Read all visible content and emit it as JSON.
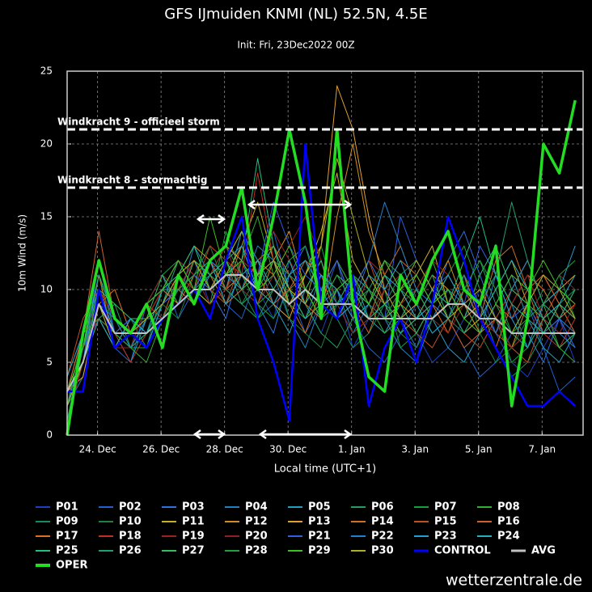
{
  "chart_data": {
    "type": "line",
    "title": "GFS IJmuiden KNMI (NL) 52.5N, 4.5E",
    "subtitle": "Init: Fri, 23Dec2022 00Z",
    "y_label": "10m Wind (m/s)",
    "x_label": "Local time (UTC+1)",
    "source": "wetterzentrale.de",
    "grid": true,
    "xlim": [
      0,
      390
    ],
    "ylim": [
      0,
      25
    ],
    "yticks": [
      0,
      5,
      10,
      15,
      20,
      25
    ],
    "xticks": [
      {
        "value": 23,
        "label": "24. Dec"
      },
      {
        "value": 71,
        "label": "26. Dec"
      },
      {
        "value": 119,
        "label": "28. Dec"
      },
      {
        "value": 167,
        "label": "30. Dec"
      },
      {
        "value": 215,
        "label": "1. Jan"
      },
      {
        "value": 263,
        "label": "3. Jan"
      },
      {
        "value": 311,
        "label": "5. Jan"
      },
      {
        "value": 359,
        "label": "7. Jan"
      }
    ],
    "hlines": [
      {
        "value": 21,
        "label": "Windkracht 9 - officieel storm"
      },
      {
        "value": 17,
        "label": "Windkracht 8 - stormachtig"
      }
    ],
    "x": [
      0,
      12,
      24,
      36,
      48,
      60,
      72,
      84,
      96,
      108,
      120,
      132,
      144,
      156,
      168,
      180,
      192,
      204,
      216,
      228,
      240,
      252,
      264,
      276,
      288,
      300,
      312,
      324,
      336,
      348,
      360,
      372,
      384
    ],
    "series": [
      {
        "name": "P01",
        "color": "#1f3fbf",
        "values": [
          2,
          6,
          9,
          7,
          6,
          8,
          9,
          10,
          12,
          9,
          11,
          13,
          10,
          8,
          12,
          9,
          7,
          10,
          6,
          8,
          11,
          9,
          7,
          5,
          6,
          8,
          10,
          7,
          5,
          4,
          6,
          8,
          5
        ]
      },
      {
        "name": "P02",
        "color": "#2060d0",
        "values": [
          3,
          7,
          8,
          6,
          5,
          9,
          11,
          8,
          10,
          12,
          9,
          8,
          11,
          14,
          10,
          7,
          9,
          12,
          8,
          6,
          5,
          7,
          9,
          11,
          8,
          6,
          4,
          5,
          7,
          9,
          6,
          3,
          4
        ]
      },
      {
        "name": "P03",
        "color": "#3070e0",
        "values": [
          1,
          5,
          11,
          8,
          7,
          6,
          9,
          12,
          11,
          10,
          8,
          12,
          9,
          7,
          11,
          13,
          10,
          8,
          9,
          12,
          10,
          8,
          6,
          9,
          12,
          14,
          11,
          8,
          6,
          7,
          5,
          8,
          10
        ]
      },
      {
        "name": "P04",
        "color": "#2080c0",
        "values": [
          2,
          4,
          9,
          6,
          8,
          7,
          10,
          9,
          13,
          11,
          12,
          10,
          9,
          11,
          8,
          6,
          9,
          10,
          7,
          9,
          8,
          6,
          5,
          8,
          10,
          9,
          7,
          11,
          9,
          6,
          8,
          7,
          6
        ]
      },
      {
        "name": "P05",
        "color": "#20a0c0",
        "values": [
          3,
          6,
          10,
          7,
          5,
          8,
          8,
          11,
          9,
          12,
          10,
          14,
          12,
          9,
          7,
          10,
          12,
          9,
          11,
          8,
          7,
          9,
          10,
          8,
          6,
          5,
          7,
          9,
          11,
          8,
          6,
          5,
          7
        ]
      },
      {
        "name": "P06",
        "color": "#20a060",
        "values": [
          2,
          5,
          8,
          9,
          6,
          7,
          9,
          10,
          11,
          13,
          12,
          9,
          8,
          10,
          12,
          9,
          7,
          6,
          8,
          10,
          12,
          11,
          9,
          7,
          8,
          10,
          12,
          9,
          7,
          6,
          8,
          9,
          7
        ]
      },
      {
        "name": "P07",
        "color": "#10a040",
        "values": [
          4,
          7,
          9,
          6,
          7,
          9,
          11,
          12,
          10,
          9,
          14,
          11,
          9,
          8,
          10,
          11,
          13,
          9,
          7,
          8,
          10,
          6,
          7,
          9,
          11,
          13,
          10,
          8,
          5,
          6,
          9,
          11,
          8
        ]
      },
      {
        "name": "P08",
        "color": "#30b030",
        "values": [
          2,
          6,
          10,
          8,
          6,
          5,
          8,
          10,
          12,
          11,
          10,
          12,
          15,
          11,
          9,
          8,
          10,
          12,
          10,
          9,
          7,
          8,
          10,
          12,
          9,
          7,
          6,
          8,
          10,
          12,
          9,
          6,
          5
        ]
      },
      {
        "name": "P09",
        "color": "#109060",
        "values": [
          3,
          5,
          9,
          7,
          8,
          6,
          10,
          11,
          9,
          12,
          11,
          10,
          8,
          9,
          11,
          12,
          9,
          8,
          6,
          7,
          9,
          11,
          12,
          10,
          8,
          7,
          9,
          6,
          4,
          5,
          7,
          9,
          10
        ]
      },
      {
        "name": "P10",
        "color": "#208040",
        "values": [
          1,
          6,
          11,
          7,
          6,
          8,
          9,
          8,
          11,
          13,
          10,
          9,
          11,
          12,
          8,
          7,
          6,
          9,
          11,
          10,
          8,
          7,
          6,
          8,
          9,
          11,
          7,
          5,
          6,
          8,
          10,
          8,
          6
        ]
      },
      {
        "name": "P11",
        "color": "#c8b020",
        "values": [
          3,
          7,
          8,
          6,
          7,
          9,
          10,
          12,
          10,
          9,
          11,
          13,
          16,
          12,
          9,
          11,
          14,
          18,
          12,
          10,
          8,
          9,
          11,
          13,
          9,
          7,
          8,
          10,
          12,
          9,
          7,
          8,
          10
        ]
      },
      {
        "name": "P12",
        "color": "#d09020",
        "values": [
          2,
          5,
          10,
          8,
          7,
          6,
          9,
          11,
          13,
          12,
          10,
          11,
          9,
          12,
          14,
          10,
          8,
          15,
          20,
          14,
          11,
          9,
          8,
          10,
          12,
          9,
          7,
          8,
          6,
          9,
          11,
          9,
          8
        ]
      },
      {
        "name": "P13",
        "color": "#e0a030",
        "values": [
          3,
          4,
          9,
          7,
          6,
          8,
          10,
          9,
          12,
          11,
          13,
          12,
          10,
          9,
          8,
          11,
          13,
          24,
          21,
          15,
          10,
          8,
          9,
          11,
          10,
          8,
          9,
          7,
          10,
          12,
          9,
          10,
          11
        ]
      },
      {
        "name": "P14",
        "color": "#d07020",
        "values": [
          2,
          6,
          11,
          6,
          8,
          7,
          9,
          10,
          9,
          12,
          11,
          10,
          12,
          11,
          9,
          7,
          10,
          12,
          9,
          8,
          11,
          13,
          10,
          8,
          9,
          11,
          8,
          12,
          13,
          10,
          7,
          9,
          8
        ]
      },
      {
        "name": "P15",
        "color": "#c05020",
        "values": [
          4,
          8,
          10,
          7,
          6,
          9,
          8,
          11,
          12,
          10,
          9,
          12,
          11,
          13,
          10,
          8,
          9,
          11,
          10,
          12,
          9,
          8,
          7,
          6,
          8,
          10,
          9,
          7,
          6,
          5,
          8,
          10,
          9
        ]
      },
      {
        "name": "P16",
        "color": "#d06030",
        "values": [
          3,
          7,
          14,
          8,
          7,
          8,
          10,
          9,
          11,
          12,
          10,
          13,
          11,
          9,
          10,
          12,
          11,
          8,
          9,
          7,
          10,
          12,
          11,
          9,
          8,
          6,
          7,
          9,
          8,
          10,
          11,
          9,
          7
        ]
      },
      {
        "name": "P17",
        "color": "#e07020",
        "values": [
          2,
          5,
          9,
          10,
          7,
          6,
          8,
          10,
          12,
          11,
          9,
          10,
          12,
          13,
          11,
          9,
          8,
          10,
          11,
          9,
          12,
          10,
          8,
          9,
          7,
          10,
          8,
          6,
          9,
          11,
          10,
          8,
          9
        ]
      },
      {
        "name": "P18",
        "color": "#c03020",
        "values": [
          3,
          6,
          8,
          7,
          5,
          7,
          9,
          11,
          10,
          13,
          12,
          11,
          18,
          12,
          10,
          9,
          11,
          10,
          8,
          11,
          9,
          7,
          8,
          10,
          9,
          7,
          6,
          8,
          10,
          9,
          7,
          6,
          8
        ]
      },
      {
        "name": "P19",
        "color": "#a02020",
        "values": [
          1,
          5,
          10,
          8,
          7,
          8,
          10,
          12,
          11,
          9,
          10,
          12,
          11,
          14,
          12,
          10,
          9,
          8,
          10,
          12,
          11,
          9,
          10,
          12,
          11,
          9,
          8,
          7,
          9,
          11,
          8,
          7,
          9
        ]
      },
      {
        "name": "P20",
        "color": "#902020",
        "values": [
          2,
          7,
          9,
          6,
          6,
          9,
          11,
          10,
          12,
          11,
          13,
          10,
          9,
          11,
          13,
          15,
          12,
          9,
          7,
          8,
          10,
          11,
          9,
          8,
          7,
          9,
          10,
          8,
          6,
          7,
          9,
          11,
          10
        ]
      },
      {
        "name": "P21",
        "color": "#3060e0",
        "values": [
          3,
          5,
          12,
          7,
          8,
          7,
          9,
          10,
          11,
          10,
          12,
          14,
          11,
          16,
          13,
          11,
          10,
          12,
          9,
          10,
          8,
          15,
          12,
          10,
          11,
          9,
          13,
          11,
          8,
          9,
          7,
          8,
          6
        ]
      },
      {
        "name": "P22",
        "color": "#2080d0",
        "values": [
          2,
          6,
          9,
          8,
          6,
          8,
          8,
          9,
          10,
          12,
          11,
          10,
          13,
          12,
          10,
          8,
          11,
          9,
          10,
          12,
          16,
          13,
          10,
          9,
          8,
          11,
          9,
          7,
          10,
          12,
          9,
          8,
          7
        ]
      },
      {
        "name": "P23",
        "color": "#20a0d0",
        "values": [
          4,
          7,
          10,
          7,
          7,
          6,
          9,
          11,
          9,
          11,
          12,
          13,
          10,
          9,
          11,
          12,
          10,
          8,
          9,
          11,
          10,
          12,
          9,
          7,
          8,
          10,
          9,
          11,
          8,
          6,
          9,
          10,
          13
        ]
      },
      {
        "name": "P24",
        "color": "#20b0c0",
        "values": [
          2,
          5,
          8,
          6,
          8,
          7,
          10,
          10,
          11,
          12,
          9,
          11,
          12,
          10,
          12,
          9,
          11,
          10,
          8,
          9,
          11,
          10,
          8,
          9,
          11,
          9,
          8,
          10,
          12,
          10,
          8,
          9,
          11
        ]
      },
      {
        "name": "P25",
        "color": "#20c080",
        "values": [
          3,
          6,
          11,
          8,
          7,
          9,
          10,
          11,
          13,
          10,
          11,
          12,
          19,
          13,
          10,
          8,
          9,
          11,
          10,
          8,
          9,
          7,
          8,
          10,
          9,
          12,
          15,
          11,
          9,
          8,
          7,
          9,
          8
        ]
      },
      {
        "name": "P26",
        "color": "#20a070",
        "values": [
          1,
          6,
          9,
          7,
          6,
          7,
          9,
          12,
          10,
          11,
          10,
          9,
          10,
          12,
          11,
          10,
          8,
          9,
          11,
          10,
          9,
          8,
          10,
          8,
          9,
          7,
          9,
          11,
          16,
          12,
          9,
          8,
          10
        ]
      },
      {
        "name": "P27",
        "color": "#30c060",
        "values": [
          3,
          5,
          10,
          9,
          8,
          8,
          11,
          9,
          12,
          11,
          12,
          10,
          11,
          13,
          9,
          10,
          12,
          8,
          10,
          9,
          11,
          9,
          7,
          9,
          10,
          8,
          11,
          13,
          10,
          9,
          8,
          6,
          7
        ]
      },
      {
        "name": "P28",
        "color": "#20a040",
        "values": [
          2,
          7,
          8,
          7,
          6,
          6,
          8,
          10,
          11,
          12,
          13,
          11,
          9,
          10,
          12,
          13,
          9,
          11,
          9,
          10,
          8,
          10,
          9,
          11,
          8,
          10,
          12,
          10,
          7,
          8,
          9,
          11,
          12
        ]
      },
      {
        "name": "P29",
        "color": "#40c020",
        "values": [
          3,
          6,
          12,
          8,
          7,
          9,
          10,
          12,
          10,
          15,
          11,
          12,
          10,
          11,
          13,
          10,
          8,
          10,
          11,
          9,
          12,
          10,
          11,
          9,
          10,
          8,
          7,
          9,
          11,
          10,
          12,
          10,
          9
        ]
      },
      {
        "name": "P30",
        "color": "#b0b020",
        "values": [
          2,
          5,
          9,
          6,
          7,
          8,
          9,
          11,
          12,
          10,
          12,
          14,
          11,
          12,
          10,
          9,
          13,
          19,
          15,
          11,
          9,
          10,
          12,
          10,
          8,
          9,
          10,
          8,
          7,
          9,
          11,
          10,
          8
        ]
      },
      {
        "name": "CONTROL",
        "color": "#0000ff",
        "values": [
          3,
          3,
          10,
          6,
          7,
          6,
          8,
          9,
          10,
          8,
          12,
          15,
          8,
          5,
          1,
          20,
          9,
          8,
          11,
          2,
          6,
          8,
          5,
          9,
          15,
          12,
          8,
          6,
          4,
          2,
          2,
          3,
          2
        ]
      },
      {
        "name": "AVG",
        "color": "#c0c0c0",
        "values": [
          3,
          5,
          9,
          7,
          7,
          7,
          8,
          9,
          10,
          10,
          11,
          11,
          10,
          10,
          9,
          10,
          9,
          9,
          9,
          8,
          8,
          8,
          8,
          8,
          9,
          9,
          8,
          8,
          7,
          7,
          7,
          7,
          7
        ]
      },
      {
        "name": "OPER",
        "color": "#22dd22",
        "values": [
          0,
          7,
          12,
          8,
          7,
          9,
          6,
          11,
          9,
          12,
          13,
          17,
          10,
          15,
          21,
          16,
          8,
          21,
          9,
          4,
          3,
          11,
          9,
          12,
          14,
          10,
          9,
          13,
          2,
          8,
          20,
          18,
          23
        ]
      }
    ]
  }
}
